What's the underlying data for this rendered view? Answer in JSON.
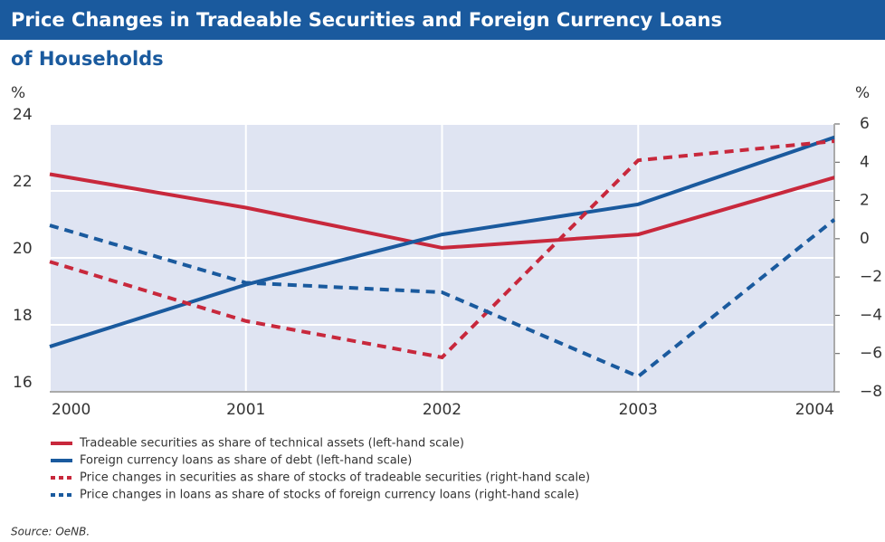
{
  "chart_data": {
    "type": "line",
    "title_lines": [
      "Price Changes in Tradeable Securities and Foreign Currency Loans",
      "of Households"
    ],
    "y_label": "%",
    "y2_label": "%",
    "x": [
      2000,
      2001,
      2002,
      2003,
      2004
    ],
    "xlim": [
      2000,
      2004
    ],
    "xticks": [
      2000,
      2001,
      2002,
      2003,
      2004
    ],
    "ylim": [
      16,
      24
    ],
    "yticks": [
      16,
      18,
      20,
      22,
      24
    ],
    "y2lim": [
      -8,
      6
    ],
    "y2ticks": [
      {
        "value": -8,
        "label": "−8"
      },
      {
        "value": -6,
        "label": "−6"
      },
      {
        "value": -4,
        "label": "−4"
      },
      {
        "value": -2,
        "label": "−2"
      },
      0,
      2,
      4,
      6
    ],
    "grid": true,
    "series": [
      {
        "name": "Tradeable securities as share of technical assets (left-hand scale)",
        "color": "#c8283c",
        "dash": false,
        "values": [
          22.5,
          21.5,
          20.3,
          20.7,
          22.4
        ]
      },
      {
        "name": "Foreign currency loans as share of debt (left-hand scale)",
        "color": "#1a5a9e",
        "dash": false,
        "values": [
          17.35,
          19.2,
          20.7,
          21.6,
          23.6
        ]
      },
      {
        "name": "Price changes in securities as share of stocks of tradeable securities (right-hand scale)",
        "color": "#c8283c",
        "dash": true,
        "axis": "y2",
        "values": [
          -1.2,
          -4.3,
          -6.2,
          4.1,
          5.1
        ]
      },
      {
        "name": "Price changes in loans as share of stocks of foreign currency loans (right-hand scale)",
        "color": "#1a5a9e",
        "dash": true,
        "axis": "y2",
        "values": [
          0.7,
          -2.3,
          -2.8,
          -7.2,
          1.0
        ]
      }
    ],
    "source": "Source: OeNB."
  }
}
